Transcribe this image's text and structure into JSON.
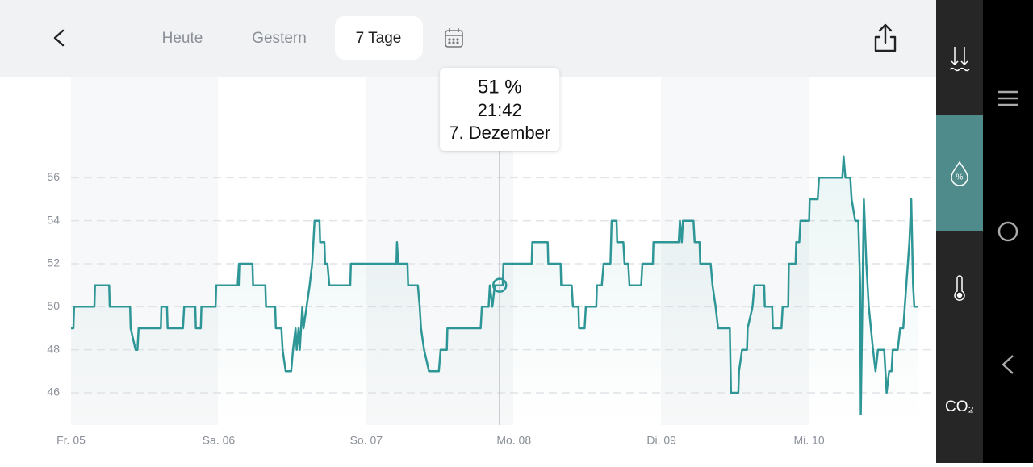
{
  "ui": {
    "tabs": [
      "Heute",
      "Gestern",
      "7 Tage"
    ],
    "selected_tab": 2,
    "sidebar_label": "CO₂"
  },
  "chart_data": {
    "type": "line",
    "series": [
      {
        "color": "#2e9696",
        "x": [
          0,
          0.4,
          0.5,
          3.8,
          3.9,
          6.2,
          6.3,
          9.6,
          9.7,
          10.5,
          10.8,
          11.0,
          14.6,
          14.7,
          15.6,
          15.7,
          18.2,
          18.4,
          20.2,
          20.3,
          21.1,
          21.2,
          23.5,
          23.6,
          27.1,
          27.3,
          27.4,
          27.5,
          29.5,
          29.6,
          31.6,
          31.7,
          33.2,
          33.3,
          34.2,
          34.4,
          34.9,
          35.8,
          36.1,
          36.5,
          36.7,
          37.0,
          37.2,
          37.6,
          37.8,
          38.3,
          38.8,
          39.2,
          39.6,
          40.4,
          40.5,
          41.2,
          41.3,
          41.7,
          42.0,
          45.4,
          45.5,
          52.9,
          53.0,
          53.2,
          54.7,
          54.8,
          56.4,
          56.7,
          56.9,
          57.4,
          58.2,
          59.8,
          60.1,
          61.1,
          61.2,
          66.6,
          66.8,
          67.9,
          68.1,
          68.5,
          68.9,
          70.2,
          70.3,
          74.9,
          75.0,
          77.5,
          77.6,
          79.6,
          79.7,
          81.4,
          81.6,
          82.5,
          82.6,
          83.5,
          83.7,
          85.4,
          85.5,
          86.3,
          86.6,
          87.7,
          87.9,
          88.7,
          88.8,
          89.8,
          90.0,
          90.6,
          90.8,
          92.7,
          92.9,
          94.6,
          94.7,
          98.8,
          99.0,
          99.3,
          99.5,
          101.2,
          101.4,
          102.2,
          102.3,
          104.0,
          104.3,
          104.8,
          105.2,
          107.1,
          107.3,
          108.5,
          108.6,
          109.1,
          109.9,
          110.0,
          110.8,
          111.1,
          112.7,
          112.8,
          114.0,
          114.1,
          115.5,
          115.7,
          116.6,
          116.7,
          117.8,
          117.9,
          118.4,
          118.6,
          120.0,
          120.1,
          121.4,
          121.6,
          125.4,
          125.6,
          125.9,
          126.7,
          126.9,
          127.5,
          128.0,
          128.3,
          128.4,
          128.9,
          129.3,
          129.7,
          130.4,
          130.8,
          131.2,
          132.2,
          132.6,
          133.0,
          133.4,
          133.6,
          134.4,
          134.8,
          135.3,
          135.8,
          136.3,
          136.6,
          136.9,
          137.1,
          137.7
        ],
        "values": [
          49,
          49,
          50,
          50,
          51,
          51,
          50,
          50,
          49,
          48,
          48,
          49,
          49,
          50,
          50,
          49,
          49,
          50,
          50,
          49,
          49,
          50,
          50,
          51,
          51,
          52,
          51,
          52,
          52,
          51,
          51,
          50,
          50,
          49,
          49,
          48,
          47,
          47,
          48,
          49,
          48,
          49,
          48,
          50,
          49,
          50,
          51,
          52,
          54,
          54,
          53,
          53,
          52,
          52,
          51,
          51,
          52,
          52,
          53,
          52,
          52,
          51,
          51,
          50,
          49,
          48,
          47,
          47,
          48,
          48,
          49,
          49,
          50,
          50,
          51,
          50,
          51,
          51,
          52,
          52,
          53,
          53,
          52,
          52,
          51,
          51,
          50,
          50,
          49,
          49,
          50,
          50,
          51,
          51,
          52,
          52,
          54,
          54,
          53,
          53,
          52,
          52,
          51,
          51,
          52,
          52,
          53,
          53,
          54,
          53,
          54,
          54,
          53,
          53,
          52,
          52,
          51,
          50,
          49,
          49,
          46,
          46,
          47,
          48,
          48,
          49,
          50,
          51,
          51,
          50,
          50,
          49,
          49,
          50,
          50,
          52,
          52,
          53,
          53,
          54,
          54,
          55,
          55,
          56,
          56,
          57,
          56,
          56,
          55,
          54,
          54,
          51,
          45,
          55,
          52,
          50,
          48,
          47,
          48,
          48,
          46,
          47,
          47,
          48,
          48,
          49,
          49,
          51,
          53,
          55,
          51,
          50,
          50
        ]
      }
    ],
    "xlim": [
      0,
      140
    ],
    "xticks": [
      {
        "value": 0,
        "label": "Fr. 05"
      },
      {
        "value": 24,
        "label": "Sa. 06"
      },
      {
        "value": 48,
        "label": "So. 07"
      },
      {
        "value": 72,
        "label": "Mo. 08"
      },
      {
        "value": 96,
        "label": "Di. 09"
      },
      {
        "value": 120,
        "label": "Mi. 10"
      }
    ],
    "ylim": [
      44.5,
      60.7
    ],
    "yticks": [
      46,
      48,
      50,
      52,
      54,
      56
    ],
    "grid": true,
    "tooltip": {
      "x": 69.7,
      "value": 51,
      "value_label": "51 %",
      "time": "21:42",
      "date": "7. Dezember"
    }
  }
}
